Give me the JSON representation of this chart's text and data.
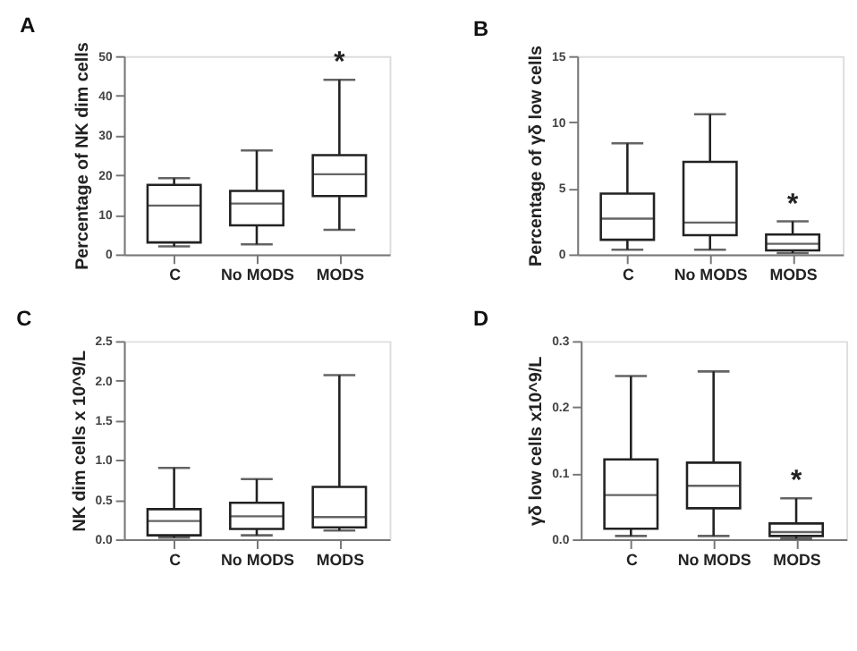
{
  "chart_data": [
    {
      "type": "box",
      "title": "A",
      "ylabel": "Percentage of NK dim cells",
      "categories": [
        "C",
        "No MODS",
        "MODS"
      ],
      "ylim": [
        0,
        50
      ],
      "yticks": [
        0,
        10,
        20,
        30,
        40,
        50
      ],
      "grid": false,
      "boxes": [
        {
          "low": 2,
          "q1": 3,
          "median": 12.3,
          "q3": 17.5,
          "high": 19.2
        },
        {
          "low": 2.5,
          "q1": 7.3,
          "median": 12.8,
          "q3": 16,
          "high": 26.2
        },
        {
          "low": 6.2,
          "q1": 14.7,
          "median": 20.2,
          "q3": 25,
          "high": 44
        }
      ],
      "annotations": [
        {
          "text": "*",
          "x": "MODS",
          "y": 44
        }
      ]
    },
    {
      "type": "box",
      "title": "B",
      "ylabel": "Percentage of γδ low cells",
      "categories": [
        "C",
        "No MODS",
        "MODS"
      ],
      "ylim": [
        0,
        15
      ],
      "yticks": [
        0,
        5,
        10,
        15
      ],
      "grid": false,
      "boxes": [
        {
          "low": 0.35,
          "q1": 1.1,
          "median": 2.7,
          "q3": 4.6,
          "high": 8.4
        },
        {
          "low": 0.35,
          "q1": 1.45,
          "median": 2.4,
          "q3": 7.0,
          "high": 10.6
        },
        {
          "low": 0.1,
          "q1": 0.3,
          "median": 0.8,
          "q3": 1.5,
          "high": 2.5
        }
      ],
      "annotations": [
        {
          "text": "*",
          "x": "MODS",
          "y": 2.5
        }
      ]
    },
    {
      "type": "box",
      "title": "C",
      "ylabel": "NK dim cells x 10^9/L",
      "categories": [
        "C",
        "No MODS",
        "MODS"
      ],
      "ylim": [
        0,
        2.5
      ],
      "yticks": [
        {
          "value": 0,
          "label": "0.0"
        },
        {
          "value": 0.5,
          "label": "0.5"
        },
        {
          "value": 1,
          "label": "1.0"
        },
        {
          "value": 1.5,
          "label": "1.5"
        },
        {
          "value": 2,
          "label": "2.0"
        },
        {
          "value": 2.5,
          "label": "2.5"
        }
      ],
      "grid": false,
      "boxes": [
        {
          "low": 0.02,
          "q1": 0.05,
          "median": 0.23,
          "q3": 0.38,
          "high": 0.9
        },
        {
          "low": 0.05,
          "q1": 0.13,
          "median": 0.29,
          "q3": 0.46,
          "high": 0.76
        },
        {
          "low": 0.11,
          "q1": 0.15,
          "median": 0.28,
          "q3": 0.66,
          "high": 2.07
        }
      ]
    },
    {
      "type": "box",
      "title": "D",
      "ylabel": "γδ low cells x10^9/L",
      "categories": [
        "C",
        "No MODS",
        "MODS"
      ],
      "ylim": [
        0,
        0.3
      ],
      "yticks": [
        {
          "value": 0,
          "label": "0.0"
        },
        {
          "value": 0.1,
          "label": "0.1"
        },
        {
          "value": 0.2,
          "label": "0.2"
        },
        {
          "value": 0.3,
          "label": "0.3"
        }
      ],
      "grid": false,
      "boxes": [
        {
          "low": 0.005,
          "q1": 0.016,
          "median": 0.067,
          "q3": 0.121,
          "high": 0.247
        },
        {
          "low": 0.005,
          "q1": 0.047,
          "median": 0.081,
          "q3": 0.116,
          "high": 0.254
        },
        {
          "low": 0.001,
          "q1": 0.005,
          "median": 0.011,
          "q3": 0.024,
          "high": 0.062
        }
      ],
      "annotations": [
        {
          "text": "*",
          "x": "MODS",
          "y": 0.062
        }
      ]
    }
  ]
}
